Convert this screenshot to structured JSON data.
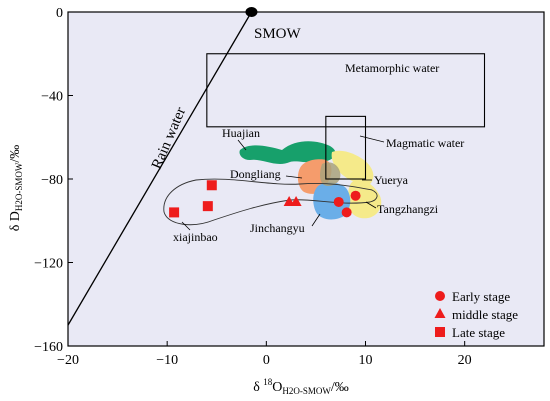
{
  "chart_data": {
    "type": "scatter",
    "xlabel": {
      "pre": "δ ",
      "sup": "18",
      "main": "O",
      "sub": "H2O-SMOW",
      "post": "/‰"
    },
    "ylabel": {
      "pre": "δ D",
      "sub": "H2O-SMOW",
      "post": "/‰"
    },
    "xlim": [
      -20,
      28
    ],
    "ylim": [
      -160,
      0
    ],
    "xticks": [
      -20,
      -10,
      0,
      10,
      20
    ],
    "yticks": [
      0,
      -40,
      -80,
      -120,
      -160
    ],
    "plot_background": "#e9e9f5",
    "series": [
      {
        "name": "Early stage",
        "marker": "circle",
        "color": "#ee1c1c",
        "points": [
          [
            7.3,
            -91
          ],
          [
            8.1,
            -96
          ],
          [
            9.0,
            -88
          ]
        ]
      },
      {
        "name": "middle stage",
        "marker": "triangle",
        "color": "#ee1c1c",
        "points": [
          [
            2.3,
            -91
          ],
          [
            3.0,
            -91
          ]
        ]
      },
      {
        "name": "Late stage",
        "marker": "square",
        "color": "#ee1c1c",
        "points": [
          [
            -9.3,
            -96
          ],
          [
            -5.9,
            -93
          ],
          [
            -5.5,
            -83
          ]
        ]
      }
    ],
    "smow_point": {
      "label": "SMOW",
      "x": -1.5,
      "y": 0
    },
    "rain_water_line": {
      "label": "Rain water",
      "from": [
        -20,
        -150
      ],
      "to": [
        -1.5,
        0
      ]
    },
    "boxes": [
      {
        "label": "Metamorphic water",
        "x": [
          -6,
          22
        ],
        "y": [
          -55,
          -20
        ]
      },
      {
        "label": "Magmatic water",
        "x": [
          6,
          10
        ],
        "y": [
          -80,
          -50
        ]
      }
    ],
    "labels": {
      "huajian": "Huajian",
      "dongliang": "Dongliang",
      "yuerya": "Yuerya",
      "tangzhangzi": "Tangzhangzi",
      "jinchangyu": "Jinchangyu",
      "xiajinbao": "xiajinbao"
    },
    "region_colors": {
      "huajian": "#17a06b",
      "dongliang": "#f59c6c",
      "yuerya": "#f5ea8a",
      "tangzhangzi": "#f5ea8a",
      "jinchangyu": "#6aaee8",
      "mixed": "#a9a27b"
    },
    "legend_position": "bottom-right"
  }
}
